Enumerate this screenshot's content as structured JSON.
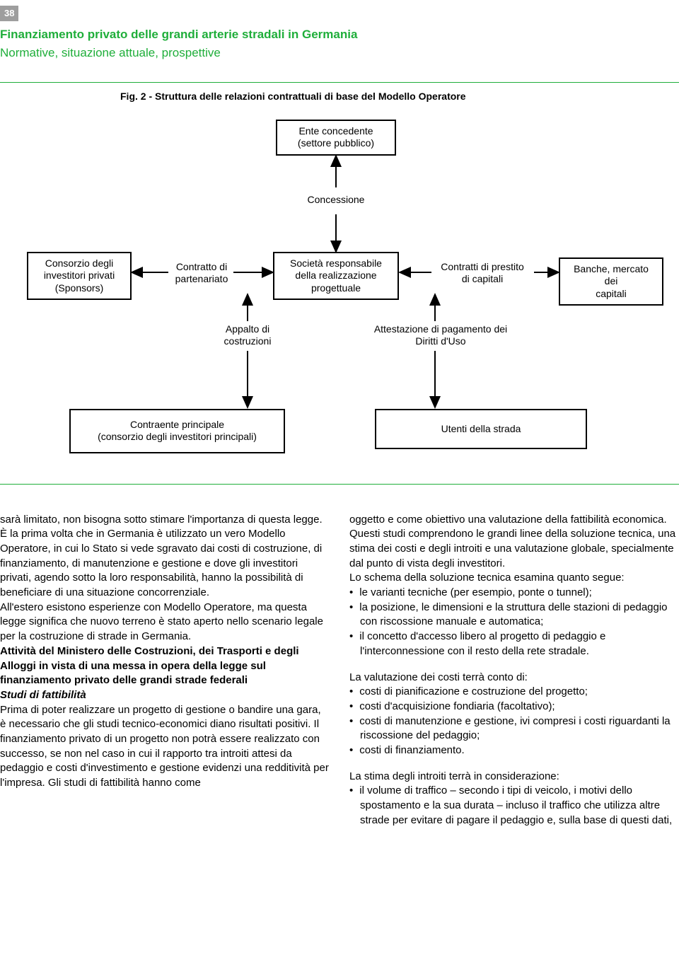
{
  "page_number": "38",
  "headline": "Finanziamento privato delle grandi arterie stradali in Germania",
  "subhead": "Normative, situazione attuale, prospettive",
  "figure": {
    "caption": "Fig. 2 - Struttura delle relazioni contrattuali di base del Modello Operatore",
    "nodes": {
      "top": "Ente concedente\n(settore pubblico)",
      "concessione": "Concessione",
      "consorzio": "Consorzio degli\ninvestitori privati\n(Sponsors)",
      "contratto": "Contratto di\npartenariato",
      "societa": "Società responsabile\ndella realizzazione\nprogettuale",
      "contratti_prestito": "Contratti di prestito\ndi capitali",
      "banche": "Banche, mercato dei\ncapitali",
      "appalto": "Appalto di\ncostruzioni",
      "attestazione": "Attestazione di pagamento dei\nDiritti d'Uso",
      "contraente": "Contraente principale\n(consorzio degli investitori principali)",
      "utenti": "Utenti della strada"
    }
  },
  "col_left": {
    "p1": "sarà limitato, non bisogna sotto stimare l'importanza di questa legge.",
    "p2": "È la prima volta che in Germania è utilizzato un vero Modello Operatore, in cui lo Stato si vede sgravato dai costi di costruzione, di finanziamento, di manutenzione e gestione e dove gli investitori privati, agendo sotto la loro responsabilità, hanno la possibilità di beneficiare di una situazione concorrenziale.",
    "p3": "All'estero esistono esperienze con Modello Operatore, ma questa legge significa che nuovo terreno è stato aperto nello scenario legale per la costruzione di strade in Germania.",
    "section_heading": "Attività del Ministero delle Costruzioni, dei Trasporti e degli Alloggi in vista di una messa in opera della legge sul finanziamento privato delle grandi strade federali",
    "studi_heading": "Studi di fattibilità",
    "p4": "Prima di poter realizzare un progetto di gestione o bandire una gara, è necessario che gli studi tecnico-economici diano risultati positivi. Il finanziamento privato di un progetto non potrà essere realizzato con successo, se non nel caso in cui il rapporto tra introiti attesi da pedaggio e costi d'investimento e gestione evidenzi una redditività per l'impresa. Gli studi di fattibilità hanno come"
  },
  "col_right": {
    "p1": "oggetto e come obiettivo una valutazione della fattibilità economica.",
    "p2": "Questi studi comprendono le grandi linee della soluzione tecnica, una stima dei costi e degli introiti e una valutazione globale, specialmente dal punto di vista degli investitori.",
    "p3": "Lo schema della soluzione tecnica esamina quanto segue:",
    "list1": [
      "le varianti tecniche (per esempio, ponte o tunnel);",
      "la posizione, le dimensioni e la struttura delle stazioni di pedaggio con riscossione manuale e automatica;",
      "il concetto d'accesso libero al progetto di pedaggio e l'interconnessione con il resto della rete stradale."
    ],
    "p4": "La valutazione dei costi terrà conto di:",
    "list2": [
      "costi di pianificazione e costruzione del progetto;",
      "costi d'acquisizione fondiaria (facoltativo);",
      "costi di manutenzione e gestione, ivi compresi i costi riguardanti la riscossione del pedaggio;",
      "costi di finanziamento."
    ],
    "p5": "La stima degli introiti terrà in considerazione:",
    "list3": [
      "il volume di traffico – secondo i tipi di veicolo, i motivi dello spostamento e la sua durata – incluso il traffico che utilizza altre strade per evitare di pagare il pedaggio e, sulla base di questi dati,"
    ]
  }
}
